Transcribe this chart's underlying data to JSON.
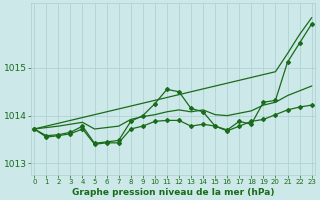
{
  "x": [
    0,
    1,
    2,
    3,
    4,
    5,
    6,
    7,
    8,
    9,
    10,
    11,
    12,
    13,
    14,
    15,
    16,
    17,
    18,
    19,
    20,
    21,
    22,
    23
  ],
  "line_straight_top": [
    1013.72,
    1013.78,
    1013.84,
    1013.9,
    1013.96,
    1014.02,
    1014.08,
    1014.14,
    1014.2,
    1014.26,
    1014.32,
    1014.38,
    1014.44,
    1014.5,
    1014.56,
    1014.62,
    1014.68,
    1014.74,
    1014.8,
    1014.86,
    1014.92,
    1015.3,
    1015.7,
    1016.05
  ],
  "line_wavy": [
    1013.72,
    1013.58,
    1013.6,
    1013.65,
    1013.78,
    1013.42,
    1013.45,
    1013.48,
    1013.88,
    1014.0,
    1014.25,
    1014.55,
    1014.5,
    1014.15,
    1014.08,
    1013.78,
    1013.7,
    1013.88,
    1013.82,
    1014.28,
    1014.32,
    1015.12,
    1015.52,
    1015.92
  ],
  "line_lower_wavy": [
    1013.72,
    1013.55,
    1013.58,
    1013.62,
    1013.72,
    1013.4,
    1013.43,
    1013.43,
    1013.72,
    1013.78,
    1013.88,
    1013.9,
    1013.9,
    1013.78,
    1013.82,
    1013.78,
    1013.68,
    1013.78,
    1013.88,
    1013.92,
    1014.02,
    1014.12,
    1014.18,
    1014.22
  ],
  "line_straight_mid": [
    1013.72,
    1013.75,
    1013.78,
    1013.82,
    1013.86,
    1013.72,
    1013.75,
    1013.78,
    1013.92,
    1013.98,
    1014.02,
    1014.08,
    1014.12,
    1014.08,
    1014.12,
    1014.02,
    1014.0,
    1014.05,
    1014.1,
    1014.22,
    1014.28,
    1014.42,
    1014.52,
    1014.62
  ],
  "line_color": "#1a6b1a",
  "bg_color": "#cce8e8",
  "grid_color": "#aacfcf",
  "title": "Graphe pression niveau de la mer (hPa)",
  "ylim": [
    1012.75,
    1016.35
  ],
  "yticks": [
    1013,
    1014,
    1015
  ],
  "xlim": [
    -0.3,
    23.3
  ],
  "xticks": [
    0,
    1,
    2,
    3,
    4,
    5,
    6,
    7,
    8,
    9,
    10,
    11,
    12,
    13,
    14,
    15,
    16,
    17,
    18,
    19,
    20,
    21,
    22,
    23
  ],
  "marker": "D",
  "markersize": 2.0,
  "linewidth": 0.9
}
